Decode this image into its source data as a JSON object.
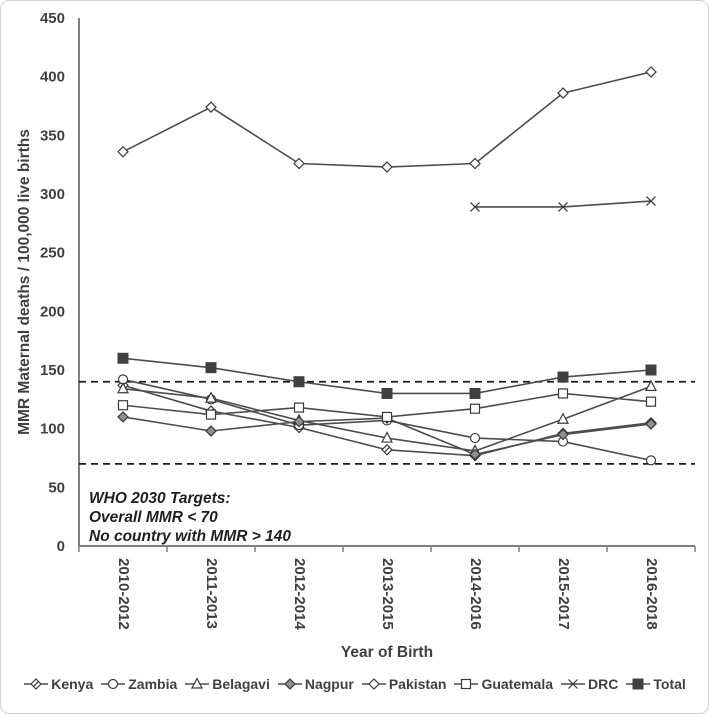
{
  "chart_data": {
    "type": "line",
    "title": "",
    "xlabel": "Year of Birth",
    "ylabel": "MMR Maternal deaths / 100,000 live births",
    "categories": [
      "2010-2012",
      "2011-2013",
      "2012-2014",
      "2013-2015",
      "2014-2016",
      "2015-2017",
      "2016-2018"
    ],
    "y_axis": {
      "min": 0,
      "max": 450,
      "step": 50
    },
    "grid": false,
    "legend_position": "bottom",
    "target_lines": [
      {
        "value": 140,
        "style": "dashed"
      },
      {
        "value": 70,
        "style": "dashed"
      }
    ],
    "annotation": {
      "lines": [
        "WHO 2030 Targets:",
        "Overall MMR < 70",
        "No country with MMR > 140"
      ]
    },
    "series": [
      {
        "name": "Kenya",
        "marker": "diamond-hatched",
        "values": [
          137,
          115,
          101,
          82,
          77,
          96,
          105
        ]
      },
      {
        "name": "Zambia",
        "marker": "circle",
        "values": [
          142,
          125,
          103,
          107,
          92,
          89,
          73
        ]
      },
      {
        "name": "Belagavi",
        "marker": "triangle",
        "values": [
          134,
          126,
          107,
          92,
          81,
          108,
          136
        ]
      },
      {
        "name": "Nagpur",
        "marker": "diamond-gray",
        "values": [
          110,
          98,
          106,
          109,
          78,
          95,
          104
        ]
      },
      {
        "name": "Pakistan",
        "marker": "diamond",
        "values": [
          336,
          374,
          326,
          323,
          326,
          386,
          404
        ]
      },
      {
        "name": "Guatemala",
        "marker": "square",
        "values": [
          120,
          112,
          118,
          110,
          117,
          130,
          123
        ]
      },
      {
        "name": "DRC",
        "marker": "x-cross",
        "values": [
          null,
          null,
          null,
          null,
          289,
          289,
          294
        ]
      },
      {
        "name": "Total",
        "marker": "square-filled",
        "values": [
          160,
          152,
          140,
          130,
          130,
          144,
          150
        ]
      }
    ],
    "colors": {
      "line": "#4d4d4d",
      "axis": "#7f7f7f",
      "text": "#404040",
      "annotation": "#1f1f1f",
      "marker_gray": "#8f8f8f",
      "marker_dark": "#404040"
    }
  }
}
